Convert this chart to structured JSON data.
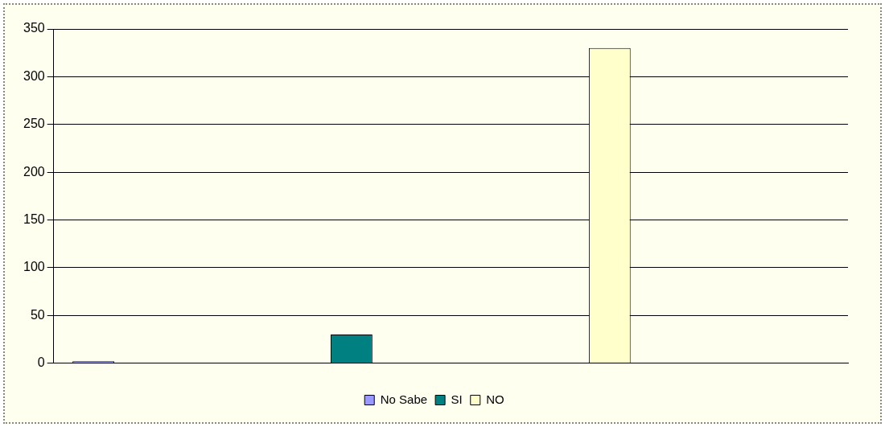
{
  "chart_data": {
    "type": "bar",
    "categories": [
      null,
      null,
      null,
      null
    ],
    "series": [
      {
        "name": "No Sabe",
        "color": "#9999ff",
        "values": [
          2,
          null,
          null,
          null
        ]
      },
      {
        "name": "SI",
        "color": "#008080",
        "values": [
          null,
          30,
          null,
          null
        ]
      },
      {
        "name": "NO",
        "color": "#ffffcc",
        "values": [
          null,
          null,
          330,
          null
        ]
      }
    ],
    "ylim": [
      0,
      350
    ],
    "yticks": [
      0,
      50,
      100,
      150,
      200,
      250,
      300,
      350
    ],
    "grid": "y",
    "legend": "bottom"
  }
}
